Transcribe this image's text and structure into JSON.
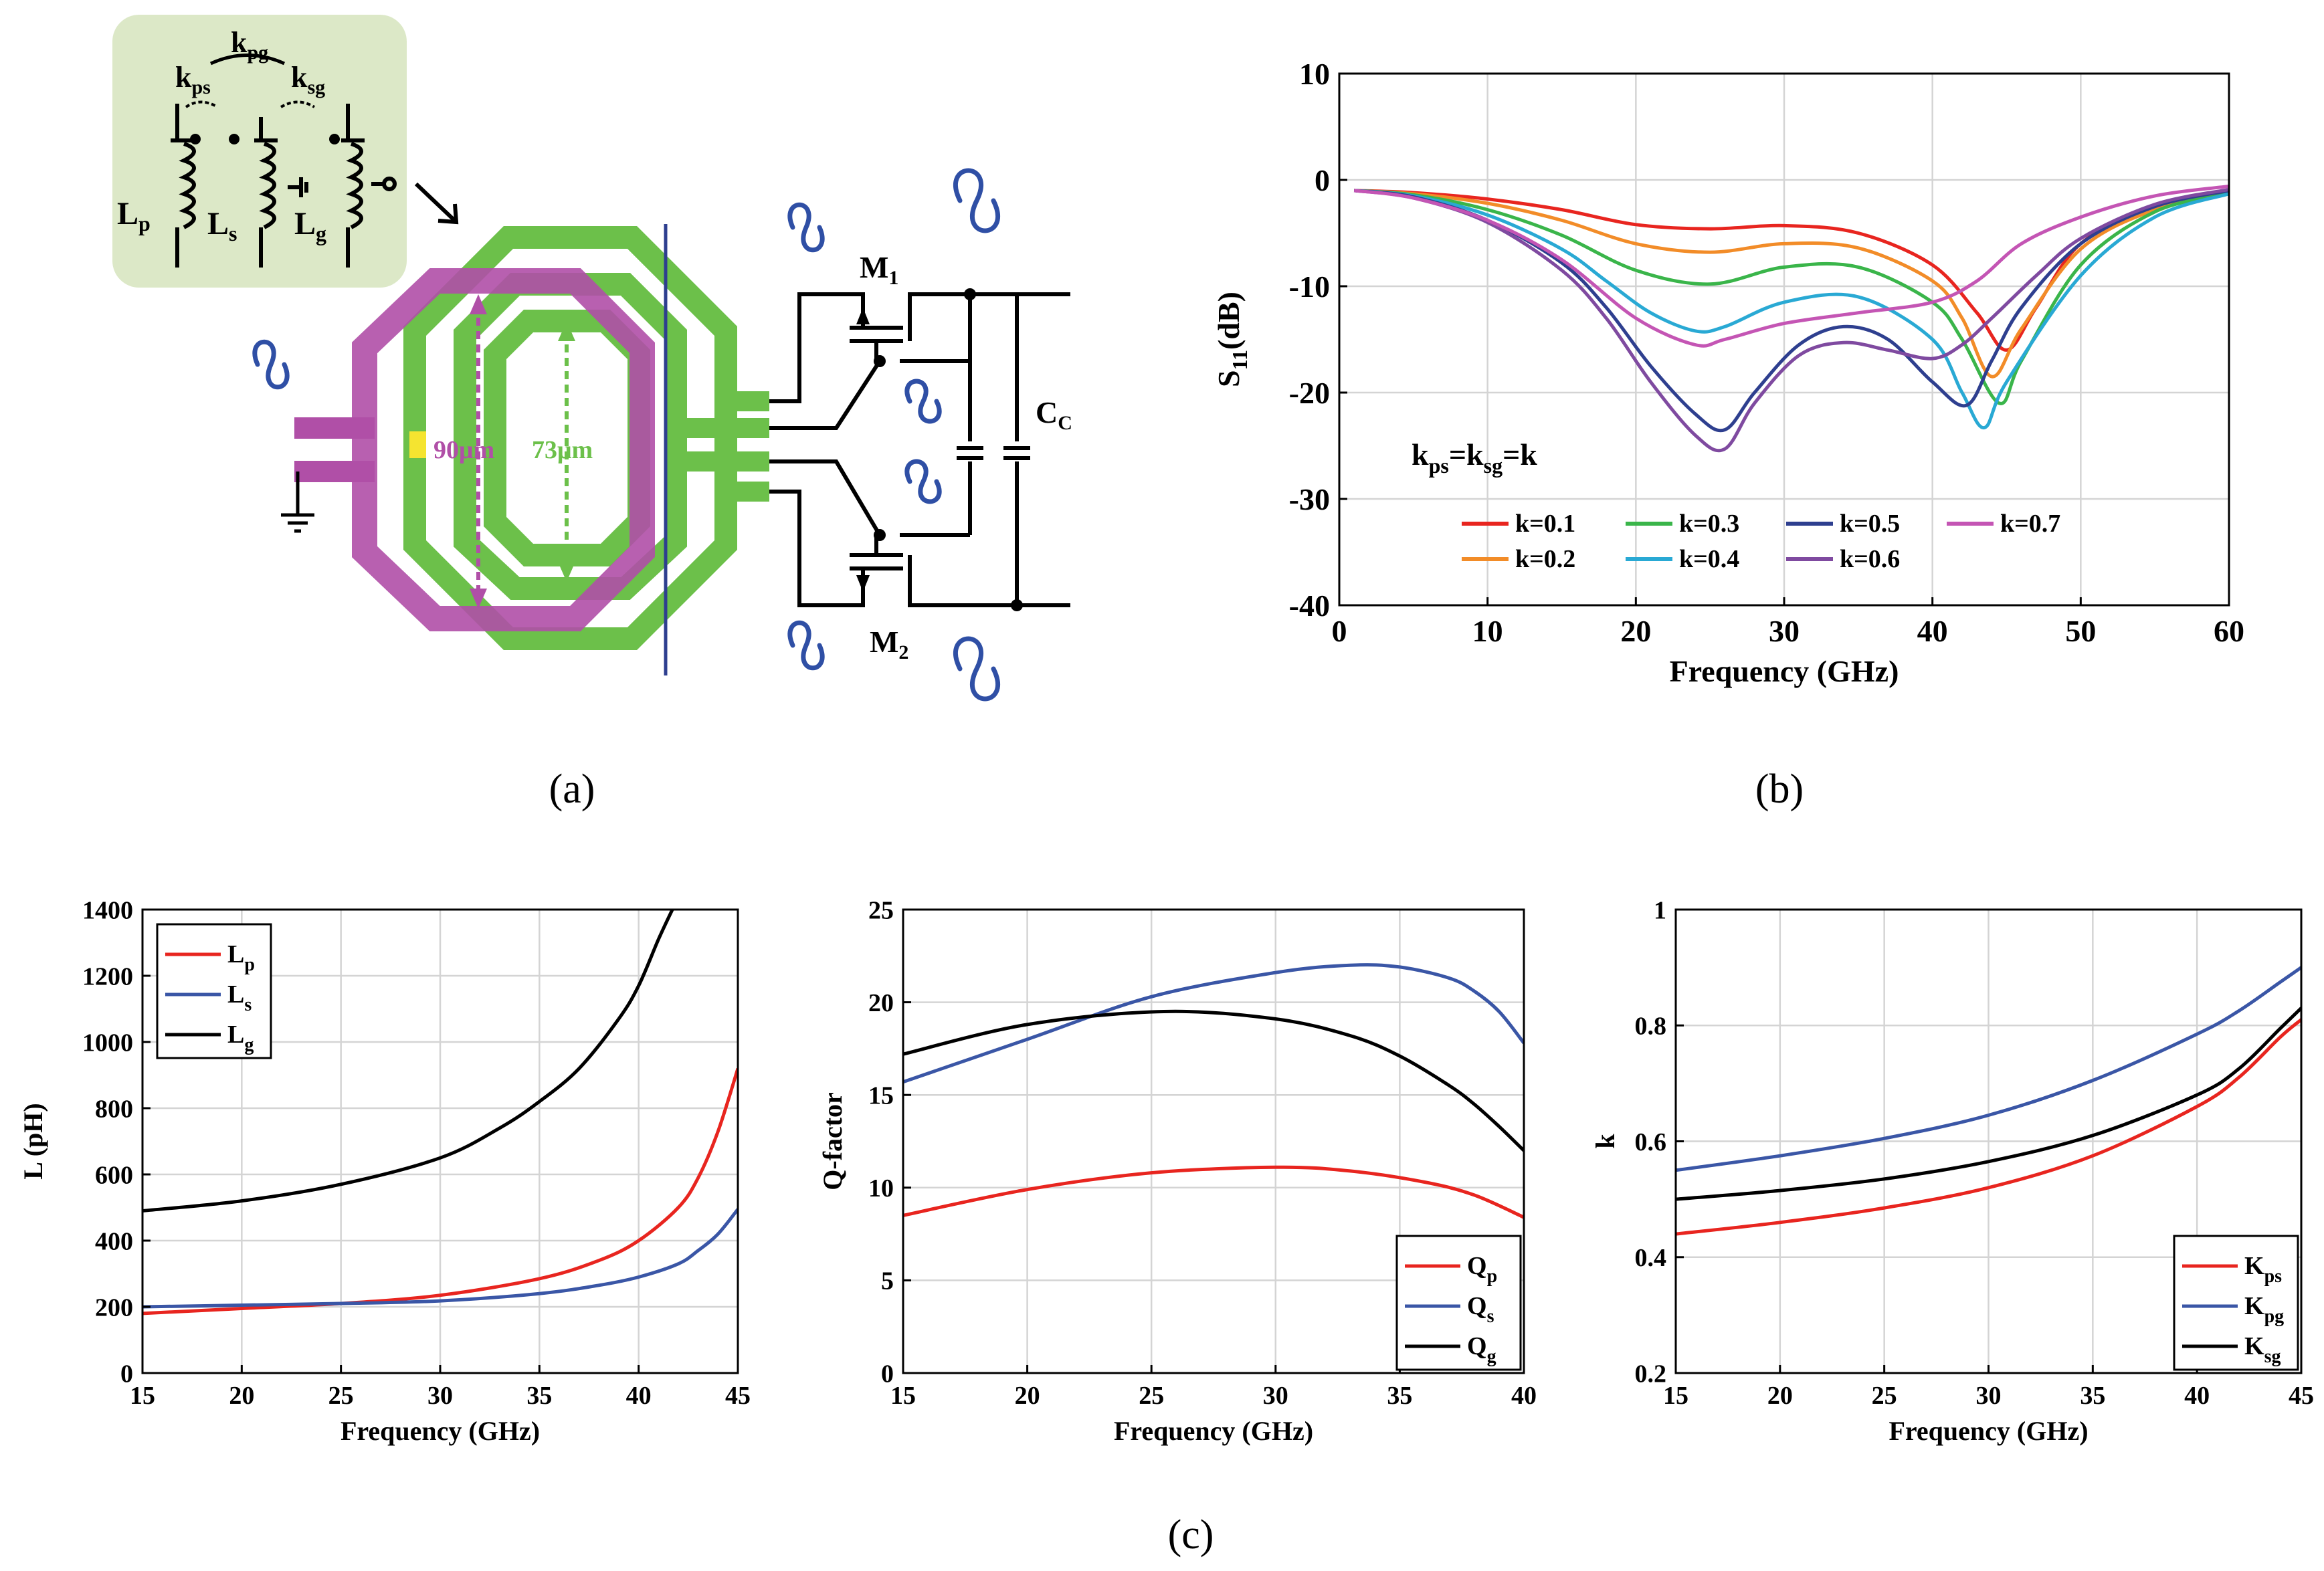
{
  "colors": {
    "red": "#e8251f",
    "orange": "#f28c28",
    "green": "#3ab54a",
    "cyan": "#29a9d4",
    "darkblue": "#2e3f8f",
    "purple": "#7f4aa0",
    "magenta": "#c455b4",
    "blue": "#3a56a6",
    "black": "#000000",
    "trace_green": "#6cc04a",
    "trace_magenta": "#b04fa7",
    "inset_bg": "#dce8c7",
    "wave_blue": "#2f4fa5"
  },
  "panel_labels": {
    "a": "(a)",
    "b": "(b)",
    "c": "(c)"
  },
  "schematic": {
    "coupling_pg": "k",
    "coupling_pg_sub": "pg",
    "coupling_ps": "k",
    "coupling_ps_sub": "ps",
    "coupling_sg": "k",
    "coupling_sg_sub": "sg",
    "lp": "L",
    "lp_sub": "p",
    "ls": "L",
    "ls_sub": "s",
    "lg": "L",
    "lg_sub": "g",
    "m1": "M",
    "m1_sub": "1",
    "m2": "M",
    "m2_sub": "2",
    "cc": "C",
    "cc_sub": "C",
    "dim_outer": "90μm",
    "dim_inner": "73μm"
  },
  "chart_data": [
    {
      "id": "b",
      "type": "line",
      "title": "",
      "xlabel": "Frequency (GHz)",
      "ylabel_main": "S",
      "ylabel_sub": "11",
      "ylabel_rest": "(dB)",
      "xlim": [
        0,
        60
      ],
      "ylim": [
        -40,
        10
      ],
      "xticks": [
        0,
        10,
        20,
        30,
        40,
        50,
        60
      ],
      "yticks": [
        10,
        0,
        -10,
        -20,
        -30,
        -40
      ],
      "grid": true,
      "annotation": {
        "k1": "k",
        "s1": "ps",
        "k2": "=k",
        "s2": "sg",
        "k3": "=k"
      },
      "legend_position": "bottom-center",
      "series": [
        {
          "name": "k=0.1",
          "color_key": "red",
          "x": [
            1,
            5,
            10,
            15,
            20,
            25,
            30,
            35,
            40,
            43,
            45,
            47,
            50,
            55,
            60
          ],
          "y": [
            -1,
            -1.2,
            -1.8,
            -2.8,
            -4.2,
            -4.6,
            -4.3,
            -5,
            -8,
            -12.5,
            -16,
            -12,
            -6,
            -2.5,
            -1.2
          ]
        },
        {
          "name": "k=0.2",
          "color_key": "orange",
          "x": [
            1,
            5,
            10,
            15,
            20,
            25,
            30,
            35,
            40,
            42,
            44,
            46,
            50,
            55,
            60
          ],
          "y": [
            -1,
            -1.3,
            -2.2,
            -3.8,
            -6,
            -6.8,
            -6,
            -6.4,
            -9.5,
            -13,
            -18.5,
            -14,
            -6.5,
            -2.8,
            -1.3
          ]
        },
        {
          "name": "k=0.3",
          "color_key": "green",
          "x": [
            1,
            5,
            10,
            15,
            20,
            25,
            30,
            35,
            40,
            42,
            44.5,
            46,
            50,
            55,
            60
          ],
          "y": [
            -1,
            -1.4,
            -2.8,
            -5.2,
            -8.5,
            -9.8,
            -8.2,
            -8.2,
            -11.5,
            -15,
            -21,
            -17,
            -8,
            -3,
            -1.3
          ]
        },
        {
          "name": "k=0.4",
          "color_key": "cyan",
          "x": [
            1,
            5,
            10,
            15,
            18,
            21,
            24,
            26,
            30,
            35,
            40,
            42,
            43.5,
            45,
            50,
            55,
            60
          ],
          "y": [
            -1,
            -1.5,
            -3.3,
            -6.5,
            -9.5,
            -12.5,
            -14.2,
            -13.8,
            -11.5,
            -11,
            -15,
            -20,
            -23.3,
            -19,
            -9,
            -3.5,
            -1.3
          ]
        },
        {
          "name": "k=0.5",
          "color_key": "darkblue",
          "x": [
            1,
            5,
            10,
            15,
            18,
            21,
            24,
            26,
            28,
            31,
            34,
            37,
            40,
            42.3,
            44,
            46,
            50,
            55,
            60
          ],
          "y": [
            -1,
            -1.6,
            -3.8,
            -7.8,
            -12,
            -17.5,
            -22,
            -23.5,
            -20,
            -15.5,
            -13.8,
            -15,
            -19,
            -21.2,
            -17,
            -12,
            -6,
            -2.5,
            -1
          ]
        },
        {
          "name": "k=0.6",
          "color_key": "purple",
          "x": [
            1,
            5,
            10,
            15,
            18,
            21,
            24,
            26,
            28,
            31,
            34,
            37,
            40,
            42,
            44,
            47,
            50,
            55,
            60
          ],
          "y": [
            -1,
            -1.7,
            -4,
            -8.5,
            -13,
            -19,
            -24,
            -25.3,
            -21,
            -16.5,
            -15.3,
            -16,
            -16.8,
            -15.5,
            -13,
            -9,
            -5.5,
            -2.3,
            -0.9
          ]
        },
        {
          "name": "k=0.7",
          "color_key": "magenta",
          "x": [
            1,
            5,
            10,
            15,
            20,
            24,
            26,
            30,
            35,
            40,
            43,
            46,
            50,
            55,
            60
          ],
          "y": [
            -1,
            -1.7,
            -3.8,
            -7.5,
            -13,
            -15.5,
            -15,
            -13.5,
            -12.5,
            -11.5,
            -9.5,
            -6,
            -3.5,
            -1.5,
            -0.6
          ]
        }
      ]
    },
    {
      "id": "c1",
      "type": "line",
      "xlabel": "Frequency (GHz)",
      "ylabel": "L (pH)",
      "xlim": [
        15,
        45
      ],
      "ylim": [
        0,
        1400
      ],
      "xticks": [
        15,
        20,
        25,
        30,
        35,
        40,
        45
      ],
      "yticks": [
        0,
        200,
        400,
        600,
        800,
        1000,
        1200,
        1400
      ],
      "grid": true,
      "legend_position": "top-left",
      "series": [
        {
          "name": "L",
          "sub": "p",
          "color_key": "red",
          "x": [
            15,
            20,
            25,
            30,
            35,
            38,
            40,
            42,
            43,
            44,
            45
          ],
          "y": [
            180,
            195,
            210,
            235,
            285,
            340,
            400,
            500,
            590,
            730,
            920
          ]
        },
        {
          "name": "L",
          "sub": "s",
          "color_key": "blue",
          "x": [
            15,
            20,
            25,
            30,
            35,
            38,
            40,
            42,
            43,
            44,
            45
          ],
          "y": [
            200,
            205,
            210,
            218,
            240,
            265,
            290,
            330,
            370,
            420,
            495
          ]
        },
        {
          "name": "L",
          "sub": "g",
          "color_key": "black",
          "x": [
            15,
            20,
            25,
            30,
            33,
            35,
            37,
            39,
            40,
            41,
            41.7
          ],
          "y": [
            490,
            520,
            570,
            650,
            740,
            820,
            920,
            1070,
            1170,
            1310,
            1400
          ]
        }
      ]
    },
    {
      "id": "c2",
      "type": "line",
      "xlabel": "Frequency (GHz)",
      "ylabel": "Q-factor",
      "xlim": [
        15,
        40
      ],
      "ylim": [
        0,
        25
      ],
      "xticks": [
        15,
        20,
        25,
        30,
        35,
        40
      ],
      "yticks": [
        0,
        5,
        10,
        15,
        20,
        25
      ],
      "grid": true,
      "legend_position": "bottom-right",
      "series": [
        {
          "name": "Q",
          "sub": "p",
          "color_key": "red",
          "x": [
            15,
            20,
            25,
            30,
            33,
            36,
            38,
            40
          ],
          "y": [
            8.5,
            9.9,
            10.8,
            11.1,
            10.9,
            10.3,
            9.6,
            8.4
          ]
        },
        {
          "name": "Q",
          "sub": "s",
          "color_key": "blue",
          "x": [
            15,
            20,
            25,
            30,
            33,
            35,
            37,
            38,
            39,
            40
          ],
          "y": [
            15.7,
            18,
            20.3,
            21.6,
            22,
            21.9,
            21.3,
            20.6,
            19.5,
            17.8
          ]
        },
        {
          "name": "Q",
          "sub": "g",
          "color_key": "black",
          "x": [
            15,
            20,
            25.5,
            30,
            33,
            35,
            37,
            38,
            39,
            40
          ],
          "y": [
            17.2,
            18.8,
            19.5,
            19.1,
            18.2,
            17.1,
            15.5,
            14.5,
            13.3,
            12
          ]
        }
      ]
    },
    {
      "id": "c3",
      "type": "line",
      "xlabel": "Frequency (GHz)",
      "ylabel": "k",
      "xlim": [
        15,
        45
      ],
      "ylim": [
        0.2,
        1
      ],
      "xticks": [
        15,
        20,
        25,
        30,
        35,
        40,
        45
      ],
      "yticks": [
        0.2,
        0.4,
        0.6,
        0.8,
        1
      ],
      "ytick_labels": [
        "0.2",
        "0.4",
        "0.6",
        "0.8",
        "1"
      ],
      "grid": true,
      "legend_position": "bottom-right",
      "series": [
        {
          "name": "K",
          "sub": "ps",
          "color_key": "red",
          "x": [
            15,
            20,
            25,
            30,
            35,
            40,
            42,
            44,
            45
          ],
          "y": [
            0.44,
            0.46,
            0.485,
            0.52,
            0.575,
            0.66,
            0.71,
            0.78,
            0.81
          ]
        },
        {
          "name": "K",
          "sub": "pg",
          "color_key": "blue",
          "x": [
            15,
            20,
            25,
            30,
            35,
            40,
            42,
            44,
            45
          ],
          "y": [
            0.55,
            0.575,
            0.605,
            0.645,
            0.705,
            0.785,
            0.825,
            0.875,
            0.9
          ]
        },
        {
          "name": "K",
          "sub": "sg",
          "color_key": "black",
          "x": [
            15,
            20,
            25,
            30,
            35,
            40,
            42,
            44,
            45
          ],
          "y": [
            0.5,
            0.515,
            0.535,
            0.565,
            0.61,
            0.68,
            0.725,
            0.795,
            0.83
          ]
        }
      ]
    }
  ]
}
